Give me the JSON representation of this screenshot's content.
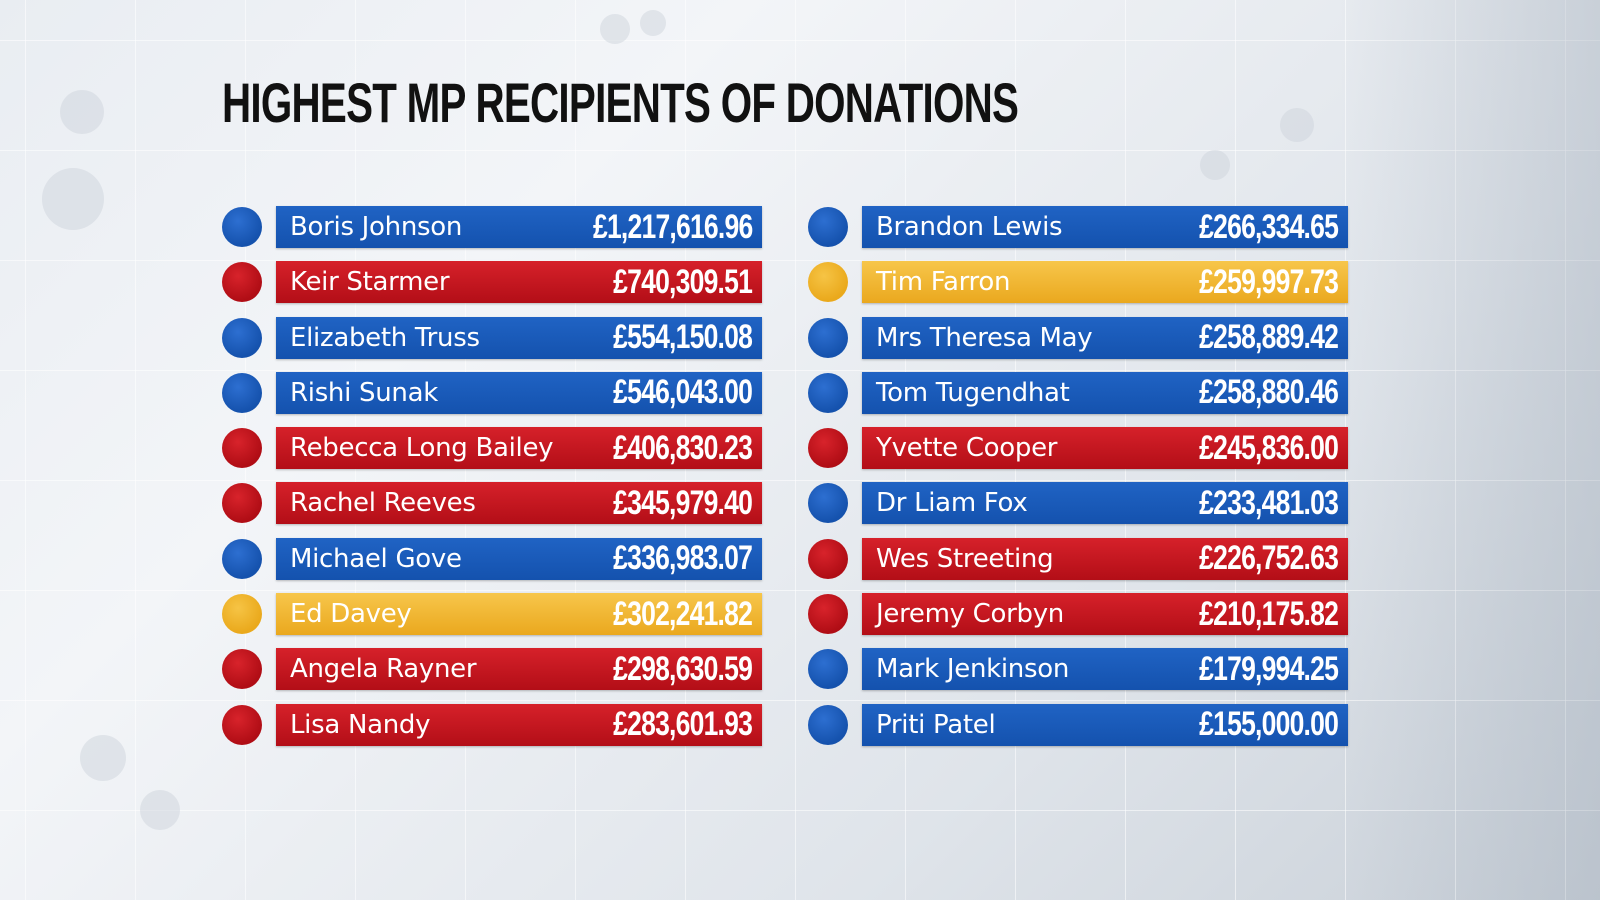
{
  "title": "HIGHEST MP RECIPIENTS OF DONATIONS",
  "party_colors": {
    "con": "#1a5bba",
    "lab": "#c4161f",
    "ld": "#f0b632"
  },
  "left_column": [
    {
      "name": "Boris Johnson",
      "amount": "£1,217,616.96",
      "party": "con"
    },
    {
      "name": "Keir Starmer",
      "amount": "£740,309.51",
      "party": "lab"
    },
    {
      "name": "Elizabeth Truss",
      "amount": "£554,150.08",
      "party": "con"
    },
    {
      "name": "Rishi Sunak",
      "amount": "£546,043.00",
      "party": "con"
    },
    {
      "name": "Rebecca Long Bailey",
      "amount": "£406,830.23",
      "party": "lab"
    },
    {
      "name": "Rachel Reeves",
      "amount": "£345,979.40",
      "party": "lab"
    },
    {
      "name": "Michael Gove",
      "amount": "£336,983.07",
      "party": "con"
    },
    {
      "name": "Ed Davey",
      "amount": "£302,241.82",
      "party": "ld"
    },
    {
      "name": "Angela Rayner",
      "amount": "£298,630.59",
      "party": "lab"
    },
    {
      "name": "Lisa Nandy",
      "amount": "£283,601.93",
      "party": "lab"
    }
  ],
  "right_column": [
    {
      "name": "Brandon Lewis",
      "amount": "£266,334.65",
      "party": "con"
    },
    {
      "name": "Tim Farron",
      "amount": "£259,997.73",
      "party": "ld"
    },
    {
      "name": "Mrs Theresa May",
      "amount": "£258,889.42",
      "party": "con"
    },
    {
      "name": "Tom Tugendhat",
      "amount": "£258,880.46",
      "party": "con"
    },
    {
      "name": "Yvette Cooper",
      "amount": "£245,836.00",
      "party": "lab"
    },
    {
      "name": "Dr Liam Fox",
      "amount": "£233,481.03",
      "party": "con"
    },
    {
      "name": "Wes Streeting",
      "amount": "£226,752.63",
      "party": "lab"
    },
    {
      "name": "Jeremy Corbyn",
      "amount": "£210,175.82",
      "party": "lab"
    },
    {
      "name": "Mark Jenkinson",
      "amount": "£179,994.25",
      "party": "con"
    },
    {
      "name": "Priti Patel",
      "amount": "£155,000.00",
      "party": "con"
    }
  ]
}
